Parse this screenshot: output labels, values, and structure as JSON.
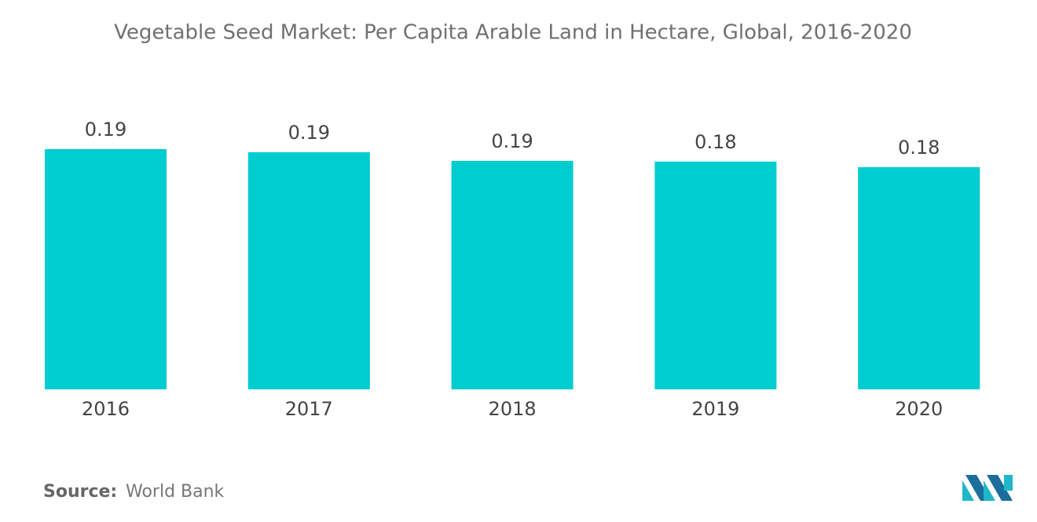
{
  "chart_data": {
    "type": "bar",
    "title": "Vegetable Seed Market: Per Capita Arable Land in Hectare, Global, 2016-2020",
    "categories": [
      "2016",
      "2017",
      "2018",
      "2019",
      "2020"
    ],
    "values": [
      0.1947,
      0.1922,
      0.1852,
      0.1846,
      0.1801
    ],
    "value_labels": [
      "0.19",
      "0.19",
      "0.19",
      "0.18",
      "0.18"
    ],
    "color": "#00cdd0",
    "source": {
      "label": "Source:",
      "text": "World Bank"
    }
  }
}
